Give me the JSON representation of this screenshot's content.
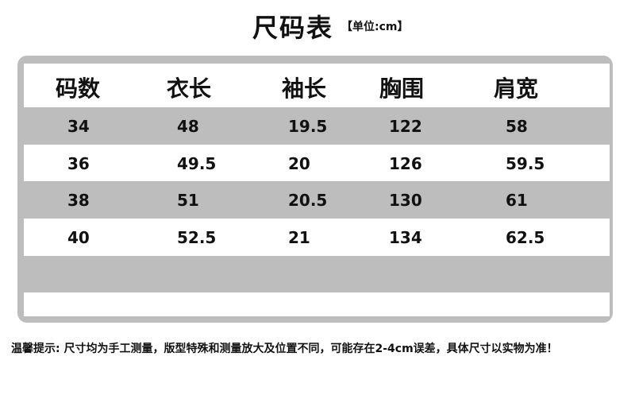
{
  "header": {
    "title": "尺码表",
    "unit": "【单位:cm】"
  },
  "table": {
    "headers": [
      "码数",
      "衣长",
      "袖长",
      "胸围",
      "肩宽"
    ],
    "rows": [
      [
        34,
        48,
        19.5,
        122,
        58
      ],
      [
        36,
        49.5,
        20,
        126,
        59.5
      ],
      [
        38,
        51,
        20.5,
        130,
        61
      ],
      [
        40,
        52.5,
        21,
        134,
        62.5
      ]
    ]
  },
  "note": "温馨提示: 尺寸均为手工测量，版型特殊和测量放大及位置不同，可能存在2-4cm误差，具体尺寸以实物为准！"
}
